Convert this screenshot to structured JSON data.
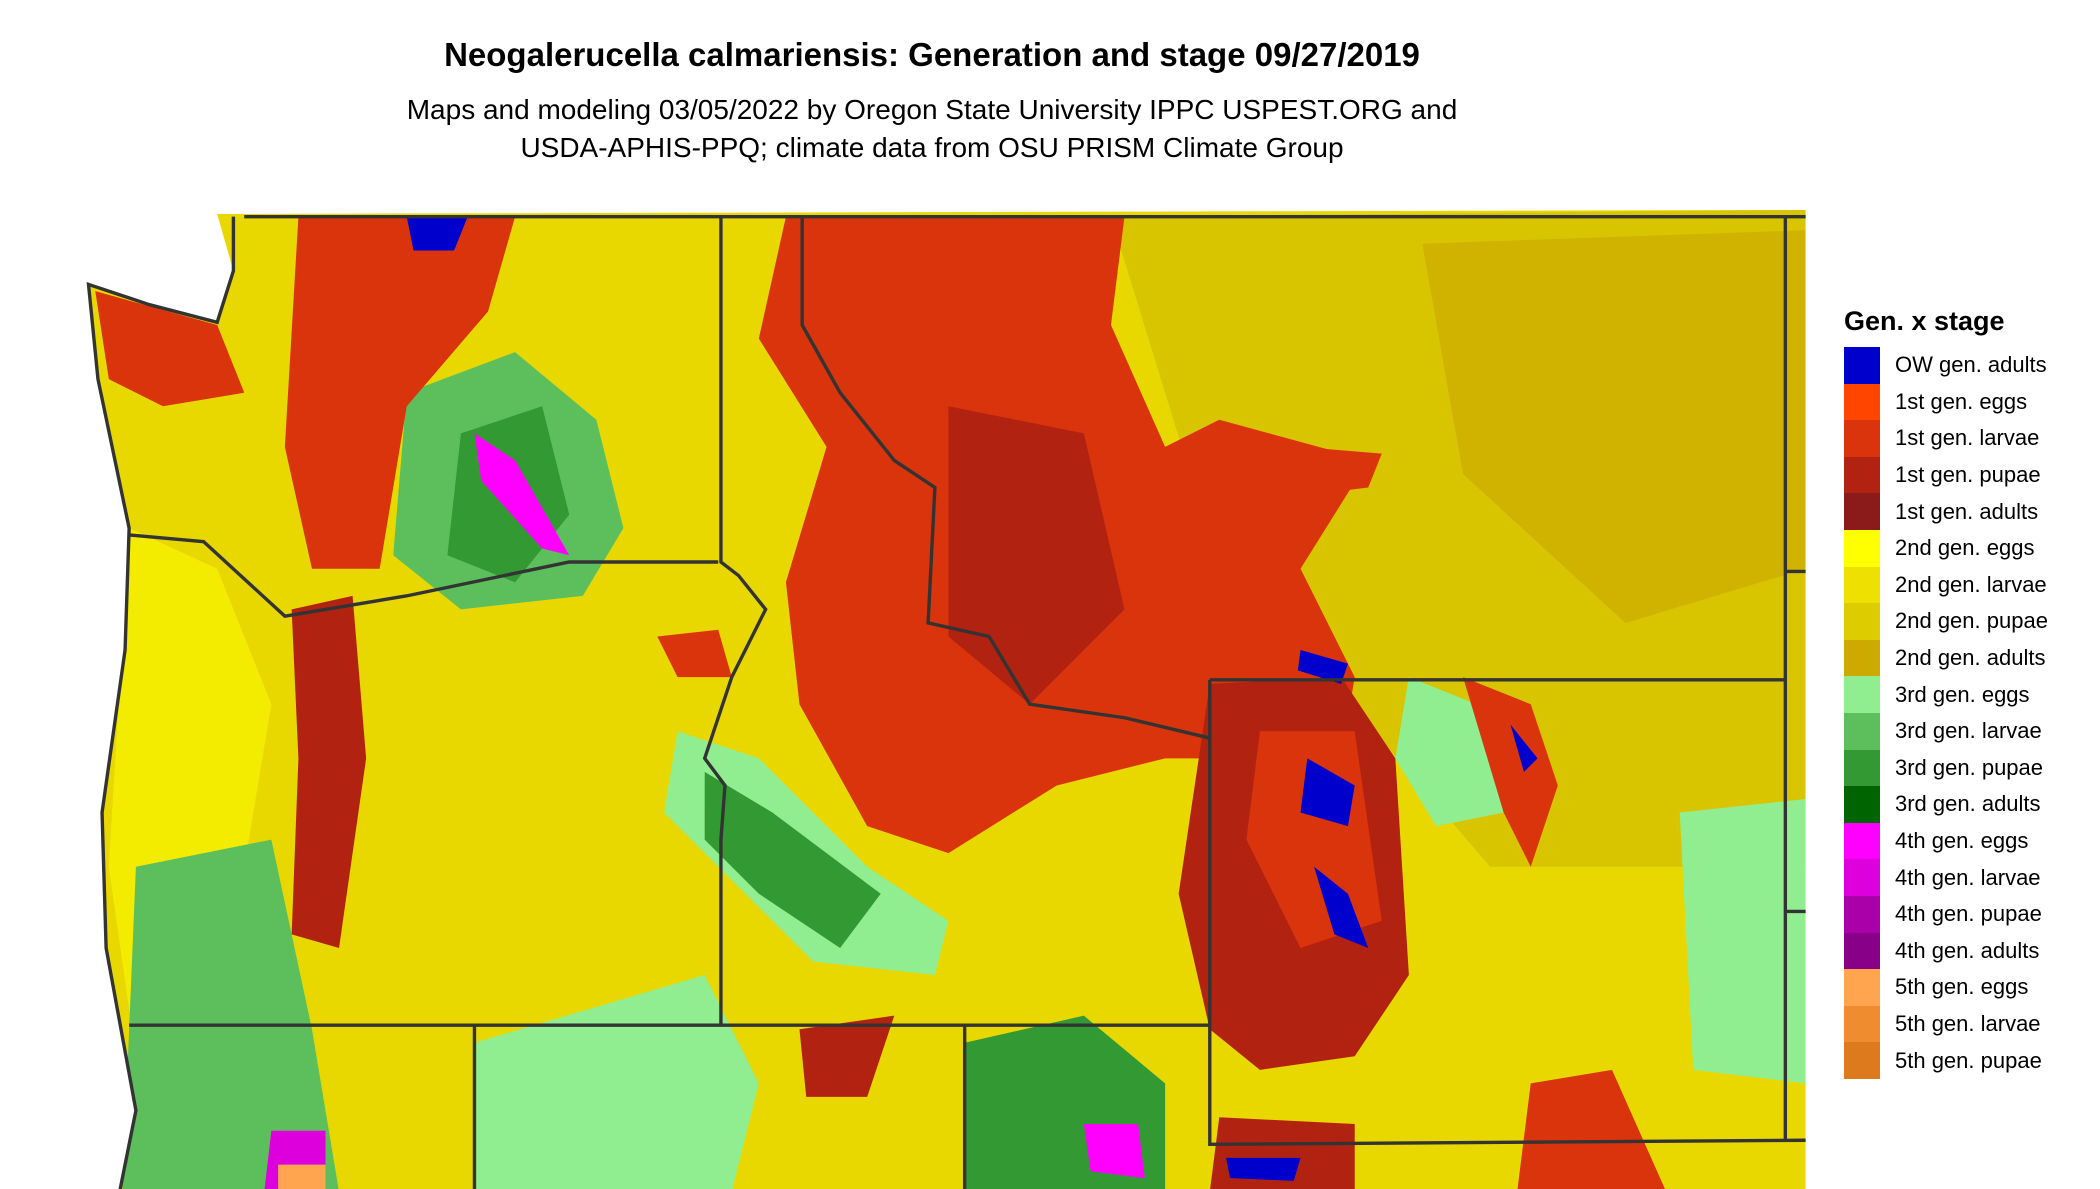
{
  "title": "Neogalerucella calmariensis: Generation and stage 09/27/2019",
  "subtitle_lines": [
    "Maps and modeling 03/05/2022 by Oregon State University IPPC USPEST.ORG and",
    "USDA-APHIS-PPQ; climate data from OSU PRISM Climate Group"
  ],
  "legend": {
    "title": "Gen. x stage",
    "items": [
      {
        "label": "OW gen. adults",
        "color": "#0000cc"
      },
      {
        "label": "1st gen. eggs",
        "color": "#ff4500"
      },
      {
        "label": "1st gen. larvae",
        "color": "#d9340b"
      },
      {
        "label": "1st gen. pupae",
        "color": "#b22211"
      },
      {
        "label": "1st gen. adults",
        "color": "#8b1a1a"
      },
      {
        "label": "2nd gen. eggs",
        "color": "#ffff00"
      },
      {
        "label": "2nd gen. larvae",
        "color": "#eee000"
      },
      {
        "label": "2nd gen. pupae",
        "color": "#ddcc00"
      },
      {
        "label": "2nd gen. adults",
        "color": "#ccaa00"
      },
      {
        "label": "3rd gen. eggs",
        "color": "#90ee90"
      },
      {
        "label": "3rd gen. larvae",
        "color": "#5cbf5c"
      },
      {
        "label": "3rd gen. pupae",
        "color": "#339933"
      },
      {
        "label": "3rd gen. adults",
        "color": "#006400"
      },
      {
        "label": "4th gen. eggs",
        "color": "#ff00ff"
      },
      {
        "label": "4th gen. larvae",
        "color": "#dd00dd"
      },
      {
        "label": "4th gen. pupae",
        "color": "#aa00aa"
      },
      {
        "label": "4th gen. adults",
        "color": "#880088"
      },
      {
        "label": "5th gen. eggs",
        "color": "#ffa54f"
      },
      {
        "label": "5th gen. larvae",
        "color": "#f08c30"
      },
      {
        "label": "5th gen. pupae",
        "color": "#dd7a1e"
      }
    ]
  },
  "border_color": "#333333"
}
